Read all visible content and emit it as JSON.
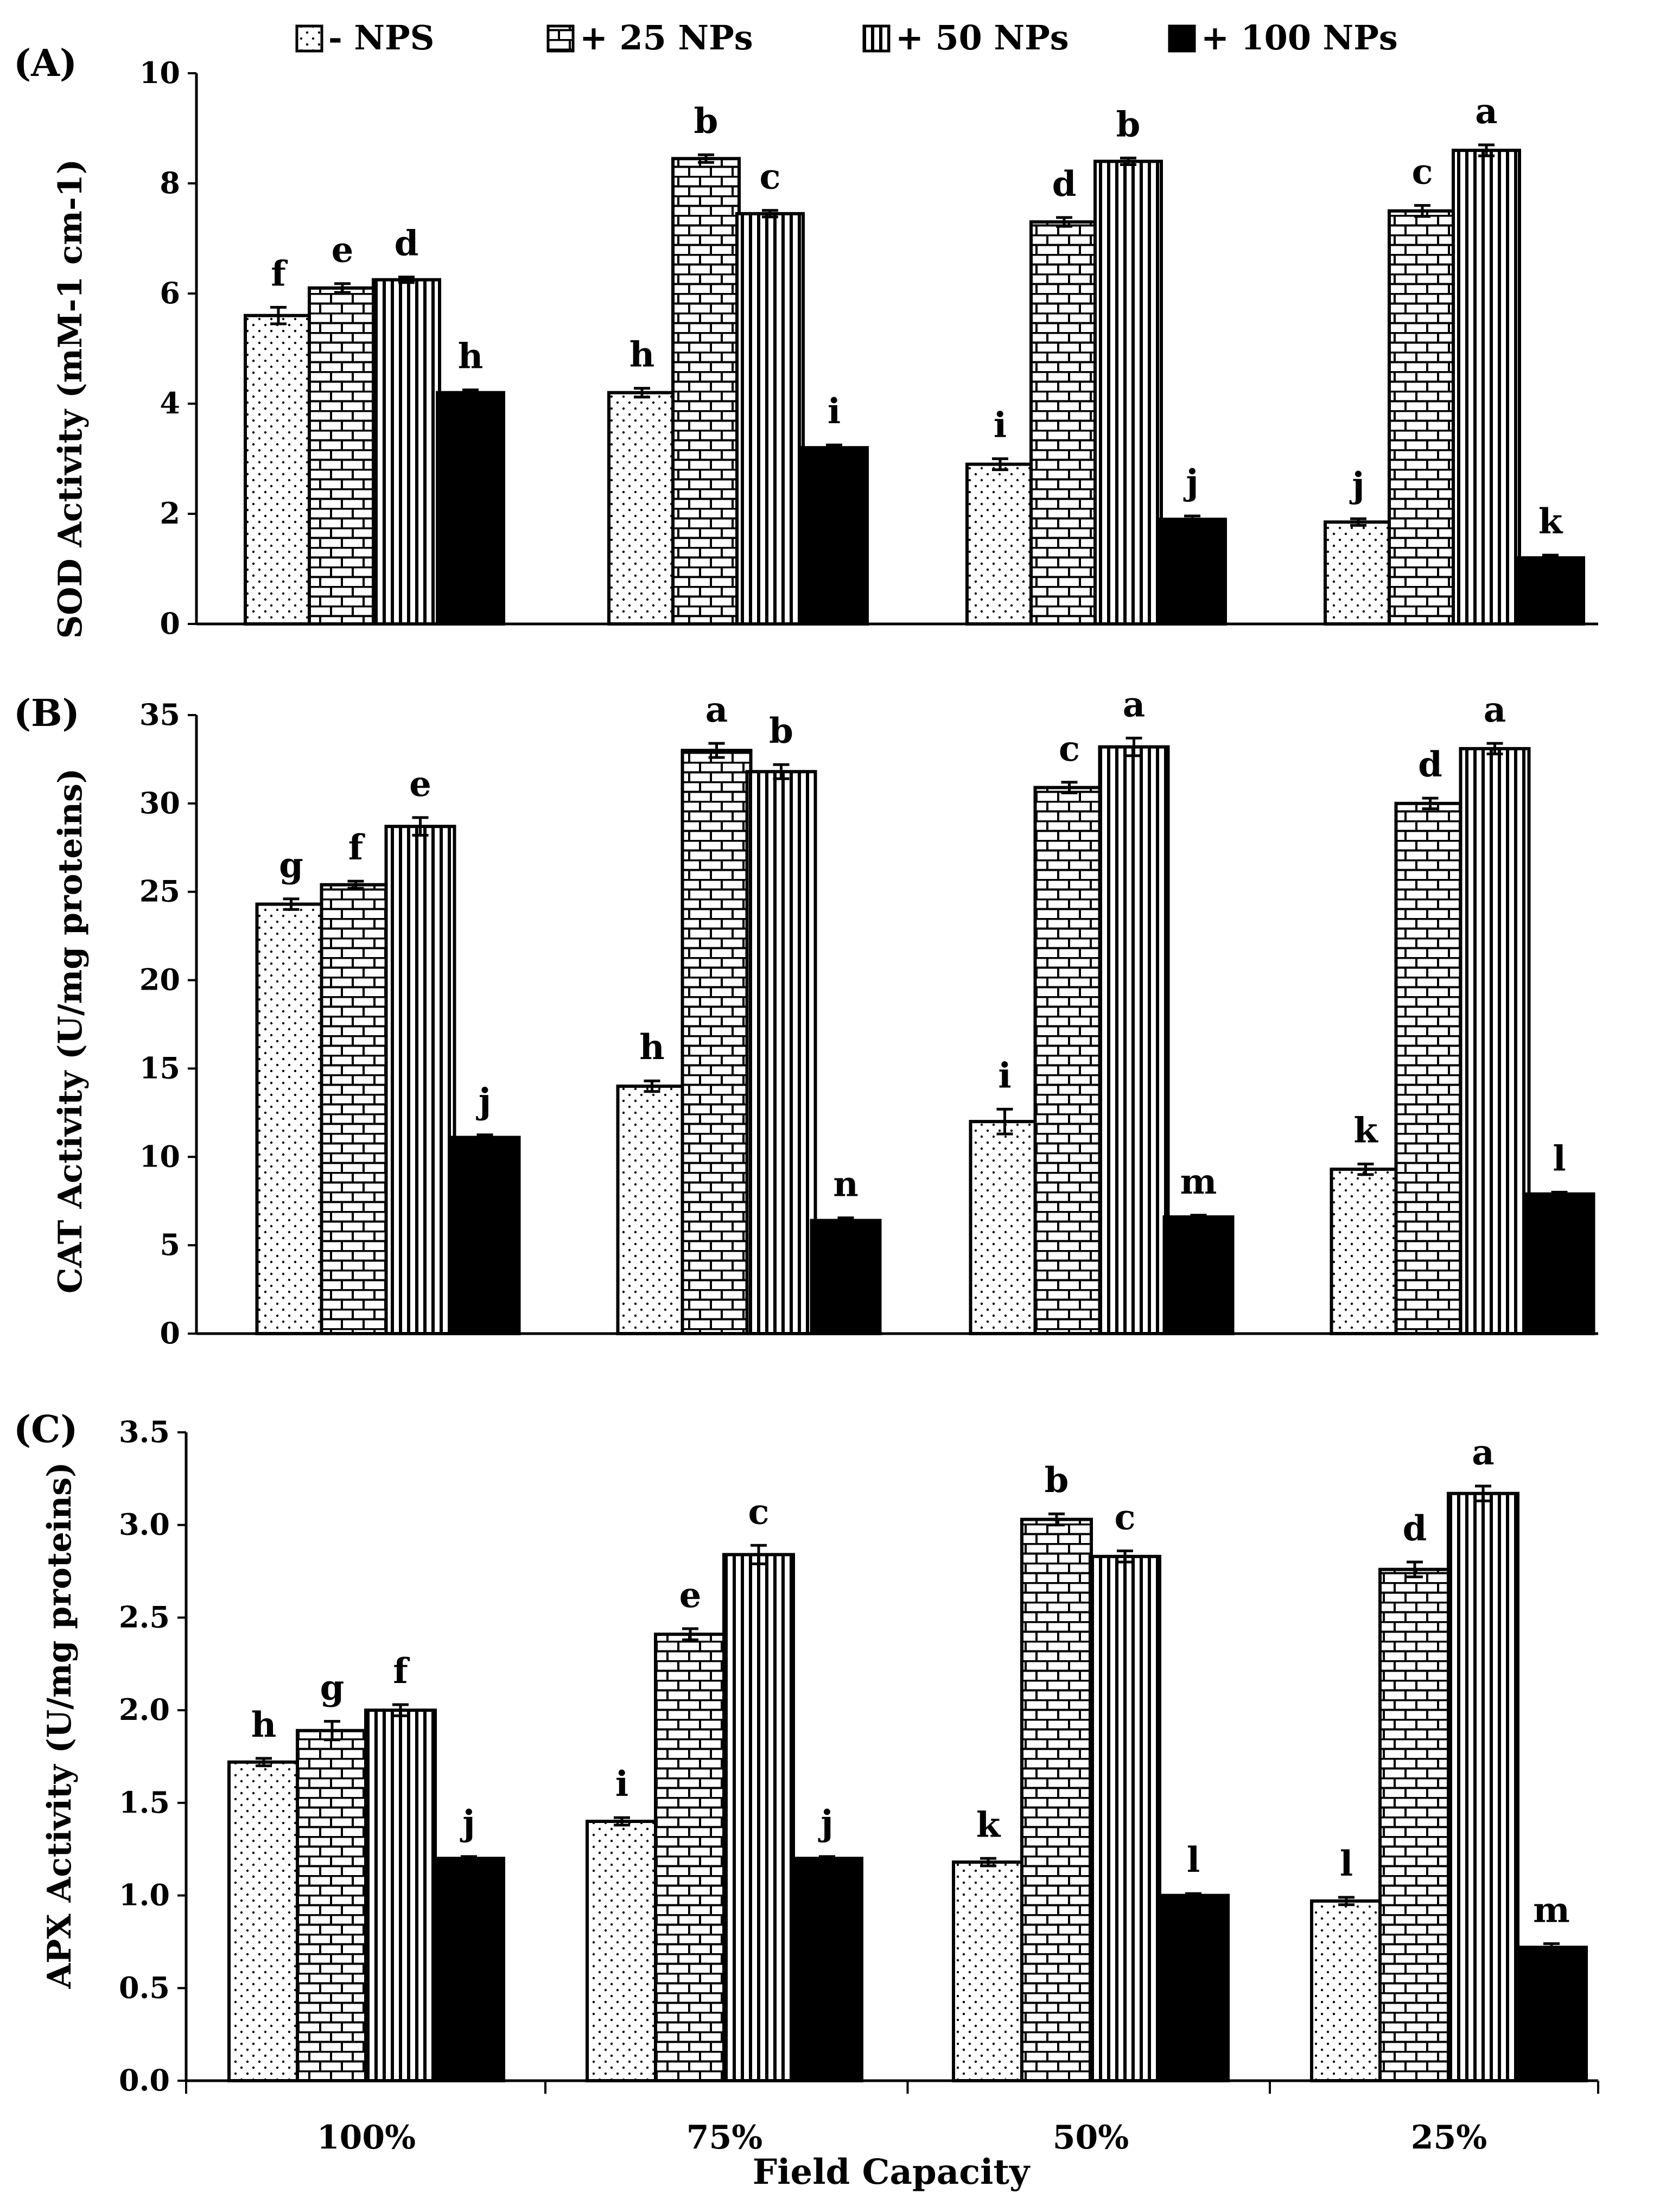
{
  "chart_data": [
    {
      "panel": "(A)",
      "type": "bar",
      "ylabel": "SOD Activity (mM-1 cm-1)",
      "xlabel": "",
      "ylim": [
        0,
        10
      ],
      "yticks": [
        "0",
        "2",
        "4",
        "6",
        "8",
        "10"
      ],
      "categories": [
        "100%",
        "75%",
        "50%",
        "25%"
      ],
      "series": [
        {
          "name": "- NPS",
          "values": [
            5.6,
            4.2,
            2.9,
            1.85
          ],
          "errors": [
            0.15,
            0.08,
            0.1,
            0.06
          ],
          "letters": [
            "f",
            "h",
            "i",
            "j"
          ]
        },
        {
          "name": "+ 25 NPs",
          "values": [
            6.1,
            8.45,
            7.3,
            7.5
          ],
          "errors": [
            0.08,
            0.07,
            0.08,
            0.1
          ],
          "letters": [
            "e",
            "b",
            "d",
            "c"
          ]
        },
        {
          "name": "+ 50 NPs",
          "values": [
            6.25,
            7.45,
            8.4,
            8.6
          ],
          "errors": [
            0.05,
            0.06,
            0.06,
            0.1
          ],
          "letters": [
            "d",
            "c",
            "b",
            "a"
          ]
        },
        {
          "name": "+ 100 NPs",
          "values": [
            4.2,
            3.2,
            1.9,
            1.2
          ],
          "errors": [
            0.05,
            0.05,
            0.06,
            0.05
          ],
          "letters": [
            "h",
            "i",
            "j",
            "k"
          ]
        }
      ]
    },
    {
      "panel": "(B)",
      "type": "bar",
      "ylabel": "CAT Activity (U/mg proteins)",
      "xlabel": "",
      "ylim": [
        0,
        35
      ],
      "yticks": [
        "0",
        "5",
        "10",
        "15",
        "20",
        "25",
        "30",
        "35"
      ],
      "categories": [
        "100%",
        "75%",
        "50%",
        "25%"
      ],
      "series": [
        {
          "name": "- NPS",
          "values": [
            24.3,
            14.0,
            12.0,
            9.3
          ],
          "errors": [
            0.3,
            0.3,
            0.7,
            0.3
          ],
          "letters": [
            "g",
            "h",
            "i",
            "k"
          ]
        },
        {
          "name": "+ 25 NPs",
          "values": [
            25.4,
            33.0,
            30.9,
            30.0
          ],
          "errors": [
            0.2,
            0.4,
            0.3,
            0.3
          ],
          "letters": [
            "f",
            "a",
            "c",
            "d"
          ]
        },
        {
          "name": "+ 50 NPs",
          "values": [
            28.7,
            31.8,
            33.2,
            33.1
          ],
          "errors": [
            0.5,
            0.4,
            0.5,
            0.3
          ],
          "letters": [
            "e",
            "b",
            "a",
            "a"
          ]
        },
        {
          "name": "+ 100 NPs",
          "values": [
            11.1,
            6.4,
            6.6,
            7.9
          ],
          "errors": [
            0.15,
            0.15,
            0.1,
            0.1
          ],
          "letters": [
            "j",
            "n",
            "m",
            "l"
          ]
        }
      ]
    },
    {
      "panel": "(C)",
      "type": "bar",
      "ylabel": "APX Activity (U/mg proteins)",
      "xlabel": "Field Capacity",
      "ylim": [
        0,
        3.5
      ],
      "yticks": [
        "0.0",
        "0.5",
        "1.0",
        "1.5",
        "2.0",
        "2.5",
        "3.0",
        "3.5"
      ],
      "categories": [
        "100%",
        "75%",
        "50%",
        "25%"
      ],
      "series": [
        {
          "name": "- NPS",
          "values": [
            1.72,
            1.4,
            1.18,
            0.97
          ],
          "errors": [
            0.02,
            0.02,
            0.02,
            0.02
          ],
          "letters": [
            "h",
            "i",
            "k",
            "l"
          ]
        },
        {
          "name": "+ 25 NPs",
          "values": [
            1.89,
            2.41,
            3.03,
            2.76
          ],
          "errors": [
            0.05,
            0.03,
            0.03,
            0.04
          ],
          "letters": [
            "g",
            "e",
            "b",
            "d"
          ]
        },
        {
          "name": "+ 50 NPs",
          "values": [
            2.0,
            2.84,
            2.83,
            3.17
          ],
          "errors": [
            0.03,
            0.05,
            0.03,
            0.04
          ],
          "letters": [
            "f",
            "c",
            "c",
            "a"
          ]
        },
        {
          "name": "+ 100 NPs",
          "values": [
            1.2,
            1.2,
            1.0,
            0.72
          ],
          "errors": [
            0.01,
            0.01,
            0.01,
            0.02
          ],
          "letters": [
            "j",
            "j",
            "l",
            "m"
          ]
        }
      ]
    }
  ],
  "legend": {
    "placement": "top",
    "items": [
      {
        "label": "- NPS",
        "pattern": "dots"
      },
      {
        "label": "+ 25 NPs",
        "pattern": "bricks"
      },
      {
        "label": "+ 50 NPs",
        "pattern": "vertical-lines"
      },
      {
        "label": "+ 100 NPs",
        "pattern": "solid"
      }
    ]
  },
  "colors": {
    "bar_outline": "#000000",
    "solid_fill": "#000000",
    "background": "#ffffff"
  }
}
